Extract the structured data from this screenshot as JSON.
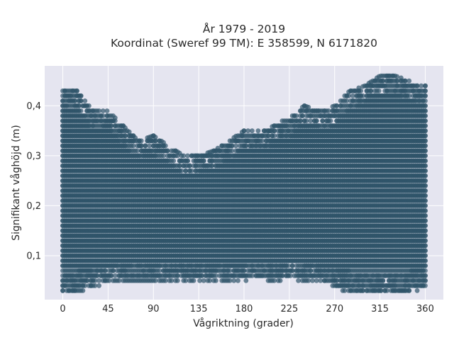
{
  "chart_data": {
    "type": "scatter",
    "title_lines": [
      "År 1979 - 2019",
      "Koordinat (Sweref 99 TM): E 358599, N 6171820"
    ],
    "xlabel": "Vågriktning (grader)",
    "ylabel": "Signifikant våghöjd (m)",
    "xlim": [
      -18,
      378
    ],
    "ylim": [
      0.012,
      0.48
    ],
    "x_ticks": [
      0,
      45,
      90,
      135,
      180,
      225,
      270,
      315,
      360
    ],
    "x_tick_labels": [
      "0",
      "45",
      "90",
      "135",
      "180",
      "225",
      "270",
      "315",
      "360"
    ],
    "y_ticks": [
      0.1,
      0.2,
      0.3,
      0.4
    ],
    "y_tick_labels": [
      "0,1",
      "0,2",
      "0,3",
      "0,4"
    ],
    "grid": true,
    "marker_color": "#2f5469",
    "marker_opacity": 0.7,
    "plot_background": "#e5e5f0",
    "grid_color": "#ffffff",
    "envelope_x_deg": [
      0,
      15,
      30,
      45,
      60,
      75,
      90,
      105,
      120,
      135,
      150,
      165,
      180,
      195,
      210,
      225,
      240,
      255,
      270,
      285,
      300,
      315,
      330,
      345,
      360
    ],
    "envelope_upper_m": [
      0.43,
      0.43,
      0.39,
      0.39,
      0.36,
      0.33,
      0.34,
      0.32,
      0.3,
      0.3,
      0.31,
      0.33,
      0.35,
      0.35,
      0.36,
      0.38,
      0.4,
      0.39,
      0.4,
      0.43,
      0.44,
      0.46,
      0.46,
      0.45,
      0.44
    ],
    "envelope_lower_m": [
      0.03,
      0.03,
      0.04,
      0.05,
      0.05,
      0.05,
      0.05,
      0.05,
      0.05,
      0.05,
      0.05,
      0.05,
      0.05,
      0.06,
      0.05,
      0.06,
      0.05,
      0.05,
      0.04,
      0.03,
      0.03,
      0.03,
      0.03,
      0.03,
      0.04
    ]
  }
}
